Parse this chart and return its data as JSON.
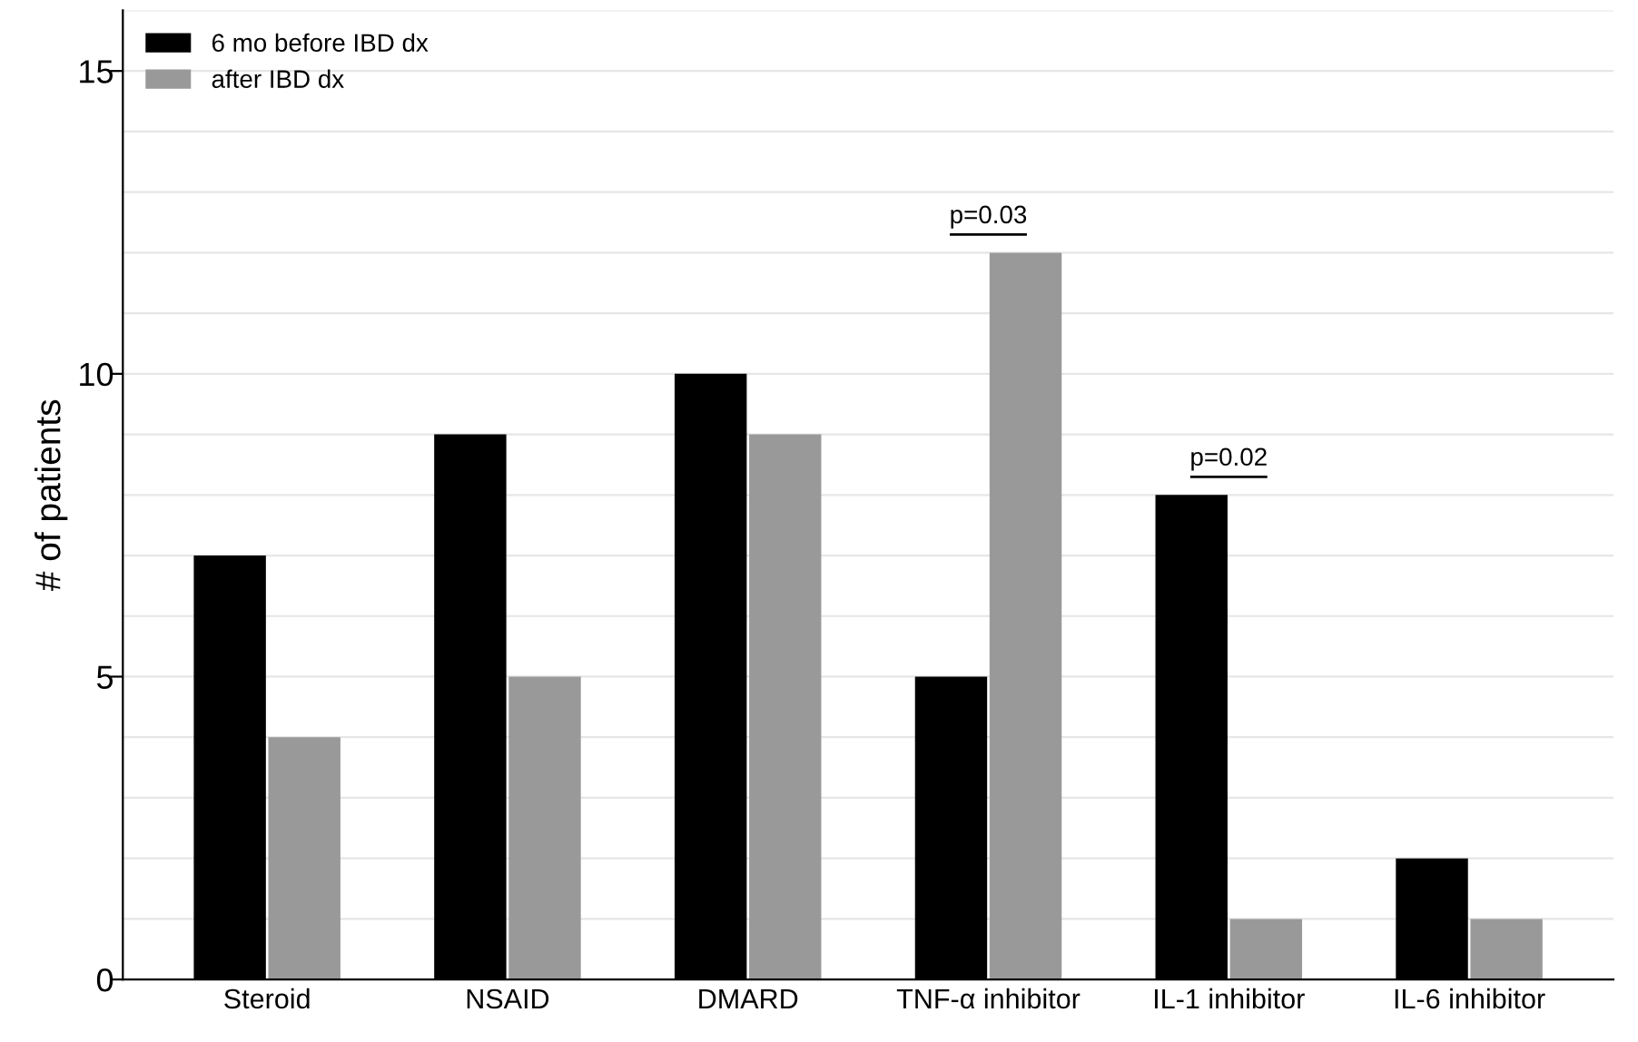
{
  "chart_data": {
    "type": "bar",
    "ylabel": "# of patients",
    "categories": [
      "Steroid",
      "NSAID",
      "DMARD",
      "TNF-α inhibitor",
      "IL-1 inhibitor",
      "IL-6 inhibitor"
    ],
    "series": [
      {
        "name": "6 mo before IBD dx",
        "color": "#000000",
        "values": [
          7,
          9,
          10,
          5,
          8,
          2
        ]
      },
      {
        "name": "after IBD dx",
        "color": "#999999",
        "values": [
          4,
          5,
          9,
          12,
          1,
          1
        ]
      }
    ],
    "ylim": [
      0,
      16
    ],
    "yticks": [
      0,
      {
        "value": 1,
        "label": null
      },
      {
        "value": 2,
        "label": null
      },
      {
        "value": 3,
        "label": null
      },
      {
        "value": 4,
        "label": null
      },
      5,
      {
        "value": 6,
        "label": null
      },
      {
        "value": 7,
        "label": null
      },
      {
        "value": 8,
        "label": null
      },
      {
        "value": 9,
        "label": null
      },
      10,
      {
        "value": 11,
        "label": null
      },
      {
        "value": 12,
        "label": null
      },
      {
        "value": 13,
        "label": null
      },
      {
        "value": 14,
        "label": null
      },
      15,
      {
        "value": 16,
        "label": null
      }
    ],
    "grid": "y",
    "legend": "top left",
    "annotations": [
      {
        "text": "p=0.03",
        "x": "TNF-α inhibitor",
        "y": 12
      },
      {
        "text": "p=0.02",
        "x": "IL-1 inhibitor",
        "y": 8
      }
    ]
  }
}
